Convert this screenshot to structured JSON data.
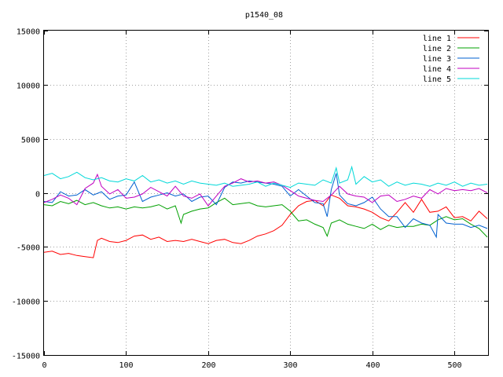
{
  "chart_data": {
    "type": "line",
    "title": "p1540_08",
    "xlabel": "",
    "ylabel": "",
    "xlim": [
      0,
      541
    ],
    "ylim": [
      -15000,
      15000
    ],
    "xticks": [
      0,
      100,
      200,
      300,
      400,
      500
    ],
    "yticks": [
      -15000,
      -10000,
      -5000,
      0,
      5000,
      10000,
      15000
    ],
    "grid": true,
    "legend_position": "top-right",
    "series": [
      {
        "name": "line 1",
        "color": "#ff0000",
        "x": [
          0,
          10,
          20,
          30,
          40,
          50,
          60,
          65,
          70,
          80,
          90,
          100,
          110,
          120,
          130,
          140,
          150,
          160,
          170,
          180,
          190,
          200,
          210,
          220,
          230,
          240,
          250,
          260,
          270,
          280,
          290,
          300,
          310,
          320,
          330,
          340,
          350,
          360,
          370,
          380,
          390,
          400,
          410,
          420,
          430,
          440,
          450,
          460,
          470,
          480,
          490,
          500,
          510,
          520,
          530,
          540
        ],
        "y": [
          -5500,
          -5400,
          -5700,
          -5600,
          -5800,
          -5900,
          -6000,
          -4400,
          -4200,
          -4500,
          -4600,
          -4400,
          -4000,
          -3900,
          -4300,
          -4100,
          -4500,
          -4400,
          -4500,
          -4300,
          -4500,
          -4700,
          -4400,
          -4300,
          -4600,
          -4700,
          -4400,
          -4000,
          -3800,
          -3500,
          -3000,
          -2000,
          -1200,
          -800,
          -700,
          -1200,
          -200,
          -500,
          -1200,
          -1300,
          -1500,
          -1800,
          -2300,
          -2600,
          -1800,
          -900,
          -1800,
          -600,
          -1800,
          -1700,
          -1300,
          -2300,
          -2200,
          -2600,
          -1700,
          -2400
        ]
      },
      {
        "name": "line 2",
        "color": "#00a000",
        "x": [
          0,
          10,
          20,
          30,
          40,
          50,
          60,
          70,
          80,
          90,
          100,
          110,
          120,
          130,
          140,
          150,
          160,
          167,
          170,
          180,
          190,
          200,
          210,
          220,
          230,
          240,
          250,
          260,
          270,
          280,
          290,
          300,
          310,
          320,
          330,
          340,
          345,
          350,
          360,
          370,
          380,
          390,
          400,
          410,
          420,
          430,
          440,
          450,
          460,
          470,
          480,
          490,
          500,
          510,
          520,
          530,
          540
        ],
        "y": [
          -1100,
          -1200,
          -800,
          -1000,
          -700,
          -1100,
          -900,
          -1200,
          -1400,
          -1300,
          -1500,
          -1300,
          -1400,
          -1300,
          -1100,
          -1500,
          -1200,
          -2800,
          -2000,
          -1700,
          -1500,
          -1400,
          -900,
          -500,
          -1100,
          -1000,
          -900,
          -1200,
          -1300,
          -1200,
          -1100,
          -1700,
          -2600,
          -2500,
          -2900,
          -3200,
          -4000,
          -2800,
          -2500,
          -2900,
          -3100,
          -3300,
          -2900,
          -3400,
          -3000,
          -3200,
          -3100,
          -3100,
          -2900,
          -3000,
          -2500,
          -2200,
          -2500,
          -2400,
          -2900,
          -3300,
          -4100
        ]
      },
      {
        "name": "line 3",
        "color": "#0060d0",
        "x": [
          0,
          10,
          20,
          30,
          40,
          50,
          60,
          70,
          80,
          90,
          100,
          110,
          120,
          130,
          140,
          150,
          160,
          170,
          180,
          190,
          200,
          210,
          220,
          230,
          240,
          250,
          260,
          270,
          280,
          290,
          300,
          310,
          320,
          330,
          340,
          345,
          350,
          356,
          360,
          370,
          380,
          390,
          400,
          410,
          420,
          430,
          440,
          450,
          460,
          470,
          478,
          480,
          490,
          500,
          510,
          520,
          530,
          540
        ],
        "y": [
          -800,
          -900,
          100,
          -300,
          -200,
          300,
          -200,
          100,
          -600,
          -300,
          -200,
          1000,
          -800,
          -400,
          -200,
          0,
          -300,
          -100,
          -800,
          -400,
          -300,
          -1100,
          500,
          1000,
          900,
          1100,
          1000,
          900,
          800,
          600,
          -300,
          300,
          -300,
          -900,
          -1000,
          -2200,
          300,
          1800,
          -200,
          -1000,
          -1200,
          -900,
          -400,
          -1500,
          -2200,
          -2200,
          -3200,
          -2400,
          -2800,
          -3000,
          -4100,
          -2000,
          -2800,
          -2900,
          -2900,
          -3200,
          -3000,
          -3300
        ]
      },
      {
        "name": "line 4",
        "color": "#c000c0",
        "x": [
          0,
          10,
          20,
          30,
          40,
          50,
          60,
          65,
          70,
          80,
          90,
          100,
          110,
          120,
          130,
          140,
          150,
          160,
          170,
          180,
          190,
          200,
          210,
          220,
          230,
          240,
          250,
          260,
          270,
          280,
          290,
          300,
          310,
          320,
          330,
          340,
          350,
          360,
          370,
          380,
          390,
          400,
          410,
          420,
          430,
          440,
          450,
          460,
          470,
          480,
          490,
          500,
          510,
          520,
          530,
          540
        ],
        "y": [
          -900,
          -600,
          -200,
          -500,
          -1100,
          400,
          900,
          1700,
          600,
          -100,
          300,
          -500,
          -400,
          -100,
          500,
          100,
          -300,
          600,
          -300,
          -500,
          -100,
          -1200,
          -300,
          600,
          900,
          1300,
          1000,
          1100,
          900,
          1000,
          700,
          200,
          -300,
          -500,
          -700,
          -800,
          -200,
          600,
          -100,
          -300,
          -400,
          -900,
          -300,
          -200,
          -800,
          -600,
          -300,
          -500,
          300,
          -100,
          400,
          200,
          300,
          200,
          400,
          0
        ]
      },
      {
        "name": "line 5",
        "color": "#00d8d8",
        "x": [
          0,
          10,
          20,
          30,
          40,
          50,
          60,
          70,
          80,
          90,
          100,
          110,
          120,
          130,
          140,
          150,
          160,
          170,
          180,
          190,
          200,
          210,
          220,
          230,
          240,
          250,
          260,
          270,
          280,
          290,
          300,
          310,
          320,
          330,
          340,
          350,
          356,
          360,
          370,
          375,
          380,
          390,
          400,
          410,
          420,
          430,
          440,
          450,
          460,
          470,
          480,
          490,
          500,
          510,
          520,
          530,
          540
        ],
        "y": [
          1600,
          1800,
          1300,
          1500,
          1900,
          1400,
          1200,
          1400,
          1100,
          1000,
          1300,
          1100,
          1600,
          1000,
          1200,
          900,
          1100,
          800,
          1100,
          900,
          800,
          700,
          900,
          600,
          700,
          800,
          1000,
          600,
          900,
          700,
          500,
          900,
          800,
          700,
          1200,
          900,
          2300,
          900,
          1200,
          2400,
          800,
          1500,
          1000,
          1200,
          600,
          1000,
          700,
          900,
          800,
          600,
          900,
          700,
          1000,
          600,
          900,
          700,
          800
        ]
      }
    ]
  }
}
